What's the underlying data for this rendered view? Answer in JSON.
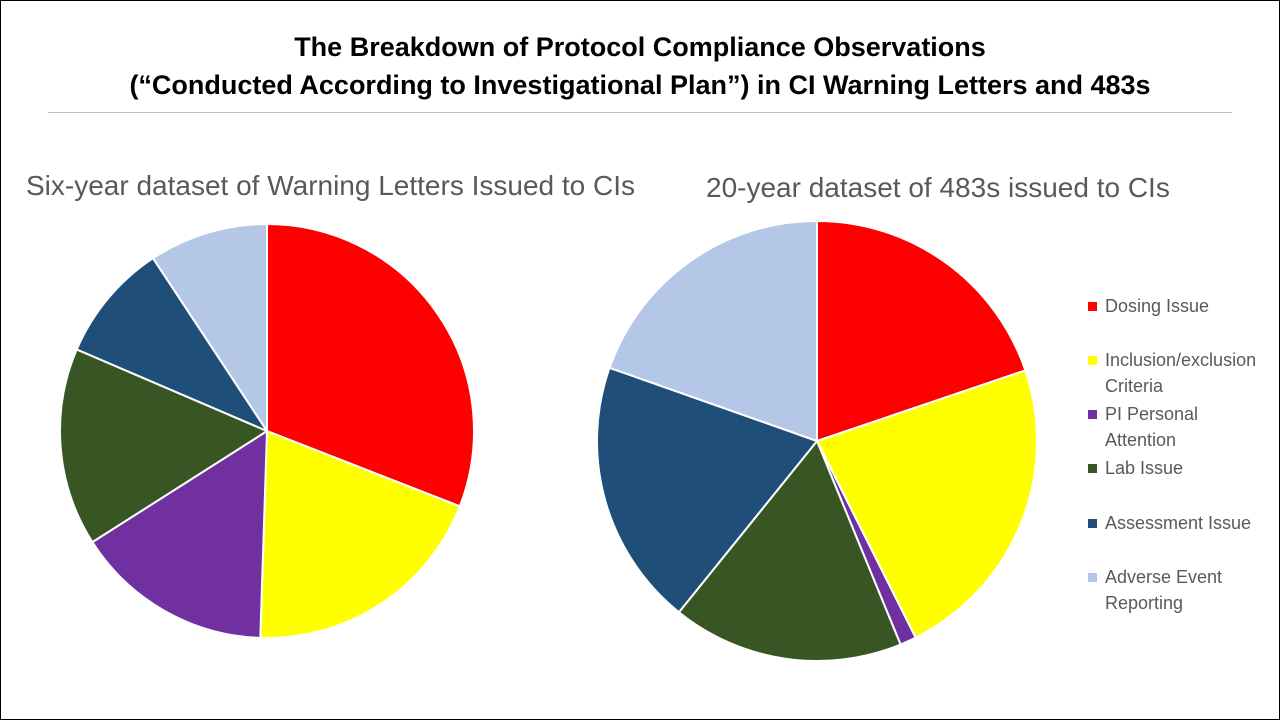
{
  "title": {
    "line1": "The Breakdown of Protocol Compliance Observations",
    "line2": "(“Conducted According to Investigational Plan”) in CI Warning Letters and 483s"
  },
  "colors": {
    "Dosing Issue": "#ff0000",
    "Inclusion/exclusion Criteria": "#ffff00",
    "PI Personal Attention": "#7030a0",
    "Lab Issue": "#375623",
    "Assessment Issue": "#1f4e79",
    "Adverse Event Reporting": "#b4c7e7"
  },
  "legend": {
    "items": [
      {
        "line1": "Dosing Issue",
        "line2": ""
      },
      {
        "line1": "Inclusion/exclusion",
        "line2": "Criteria"
      },
      {
        "line1": "PI Personal",
        "line2": "Attention"
      },
      {
        "line1": "Lab Issue",
        "line2": ""
      },
      {
        "line1": "Assessment Issue",
        "line2": ""
      },
      {
        "line1": "Adverse Event",
        "line2": "Reporting"
      }
    ]
  },
  "chart_data": [
    {
      "type": "pie",
      "title": "Six-year dataset of Warning Letters Issued to CIs",
      "categories": [
        "Dosing Issue",
        "Inclusion/exclusion Criteria",
        "PI Personal Attention",
        "Lab Issue",
        "Assessment Issue",
        "Adverse Event Reporting"
      ],
      "values": [
        30,
        19,
        15,
        15,
        9,
        9
      ],
      "unit": "percent (estimated)",
      "start_angle": "12 o'clock",
      "direction": "clockwise"
    },
    {
      "type": "pie",
      "title": "20-year dataset of 483s issued to CIs",
      "categories": [
        "Dosing Issue",
        "Inclusion/exclusion Criteria",
        "PI Personal Attention",
        "Lab Issue",
        "Assessment Issue",
        "Adverse Event Reporting"
      ],
      "values": [
        19.8,
        22.8,
        1.2,
        17.0,
        19.6,
        19.6
      ],
      "unit": "percent (estimated)",
      "start_angle": "12 o'clock",
      "direction": "clockwise"
    }
  ]
}
